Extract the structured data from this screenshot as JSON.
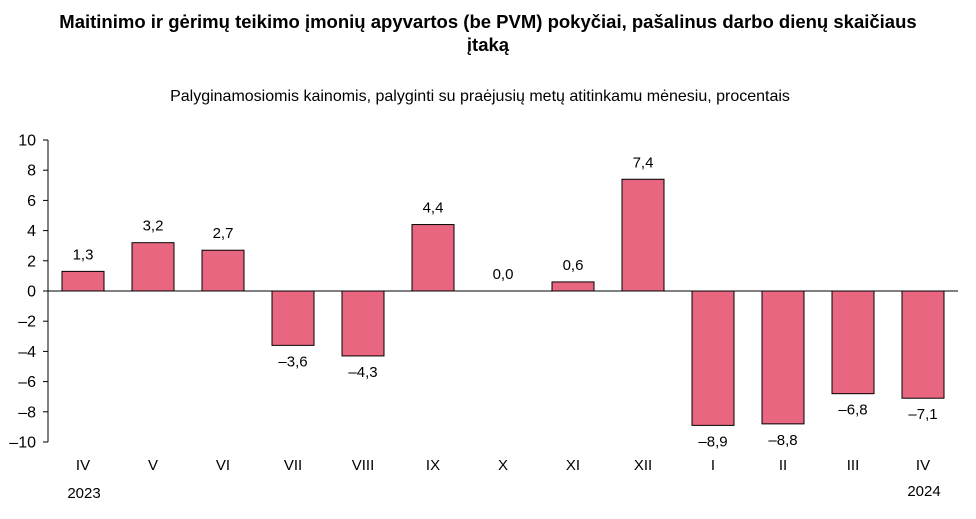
{
  "title_line1": "Maitinimo ir gėrimų teikimo įmonių apyvartos (be PVM) pokyčiai, pašalinus darbo dienų skaičiaus",
  "title_line2": "įtaką",
  "subtitle": "Palyginamosiomis kainomis, palyginti su praėjusių metų atitinkamu mėnesiu, procentais",
  "year_start": "2023",
  "year_end": "2024",
  "chart_data": {
    "type": "bar",
    "categories": [
      "IV",
      "V",
      "VI",
      "VII",
      "VIII",
      "IX",
      "X",
      "XI",
      "XII",
      "I",
      "II",
      "III",
      "IV"
    ],
    "values": [
      1.3,
      3.2,
      2.7,
      -3.6,
      -4.3,
      4.4,
      0.0,
      0.6,
      7.4,
      -8.9,
      -8.8,
      -6.8,
      -7.1
    ],
    "labels": [
      "1,3",
      "3,2",
      "2,7",
      "–3,6",
      "–4,3",
      "4,4",
      "0,0",
      "0,6",
      "7,4",
      "–8,9",
      "–8,8",
      "–6,8",
      "–7,1"
    ],
    "ylim": [
      -10,
      10
    ],
    "yticks": [
      10,
      8,
      6,
      4,
      2,
      0,
      -2,
      -4,
      -6,
      -8,
      -10
    ],
    "ytick_labels": [
      "10",
      "8",
      "6",
      "4",
      "2",
      "0",
      "–2",
      "–4",
      "–6",
      "–8",
      "–10"
    ],
    "bar_color": "#e8667f",
    "grid": false,
    "legend": "none"
  }
}
